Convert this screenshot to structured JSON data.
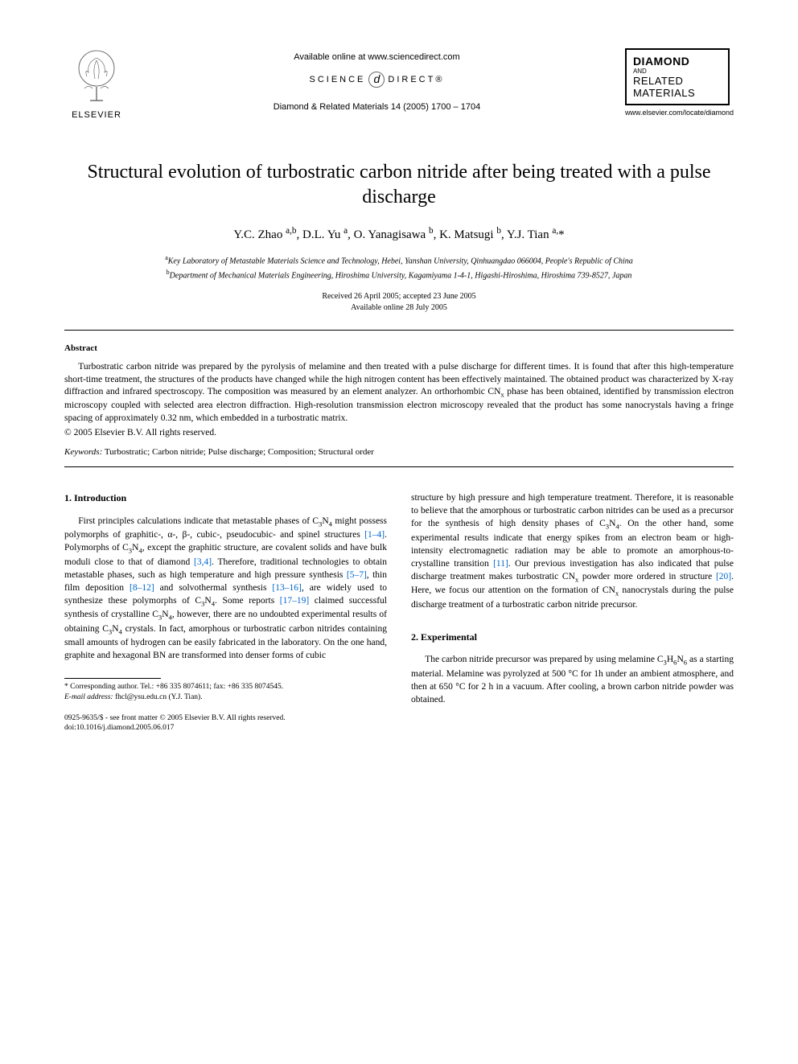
{
  "header": {
    "elsevier_label": "ELSEVIER",
    "available_online": "Available online at www.sciencedirect.com",
    "sciencedirect_left": "SCIENCE",
    "sciencedirect_right": "DIRECT®",
    "journal_ref": "Diamond & Related Materials 14 (2005) 1700 – 1704",
    "journal_box_line1": "DIAMOND",
    "journal_box_line2": "AND",
    "journal_box_line3": "RELATED",
    "journal_box_line4": "MATERIALS",
    "journal_url": "www.elsevier.com/locate/diamond"
  },
  "title": "Structural evolution of turbostratic carbon nitride after being treated with a pulse discharge",
  "authors_html": "Y.C. Zhao <sup>a,b</sup>, D.L. Yu <sup>a</sup>, O. Yanagisawa <sup>b</sup>, K. Matsugi <sup>b</sup>, Y.J. Tian <sup>a,</sup>*",
  "affiliations": {
    "a": "Key Laboratory of Metastable Materials Science and Technology, Hebei, Yanshan University, Qinhuangdao 066004, People's Republic of China",
    "b": "Department of Mechanical Materials Engineering, Hiroshima University, Kagamiyama 1-4-1, Higashi-Hiroshima, Hiroshima 739-8527, Japan"
  },
  "dates": {
    "received_accepted": "Received 26 April 2005; accepted 23 June 2005",
    "online": "Available online 28 July 2005"
  },
  "abstract": {
    "heading": "Abstract",
    "text_html": "Turbostratic carbon nitride was prepared by the pyrolysis of melamine and then treated with a pulse discharge for different times. It is found that after this high-temperature short-time treatment, the structures of the products have changed while the high nitrogen content has been effectively maintained. The obtained product was characterized by X-ray diffraction and infrared spectroscopy. The composition was measured by an element analyzer. An orthorhombic CN<sub>x</sub> phase has been obtained, identified by transmission electron microscopy coupled with selected area electron diffraction. High-resolution transmission electron microscopy revealed that the product has some nanocrystals having a fringe spacing of approximately 0.32 nm, which embedded in a turbostratic matrix.",
    "copyright": "© 2005 Elsevier B.V. All rights reserved."
  },
  "keywords": {
    "label": "Keywords:",
    "text": " Turbostratic; Carbon nitride; Pulse discharge; Composition; Structural order"
  },
  "sections": {
    "intro_heading": "1. Introduction",
    "intro_col1_html": "First principles calculations indicate that metastable phases of C<sub>3</sub>N<sub>4</sub> might possess polymorphs of graphitic-, α-, β-, cubic-, pseudocubic- and spinel structures <span class=\"ref-link\">[1–4]</span>. Polymorphs of C<sub>3</sub>N<sub>4</sub>, except the graphitic structure, are covalent solids and have bulk moduli close to that of diamond <span class=\"ref-link\">[3,4]</span>. Therefore, traditional technologies to obtain metastable phases, such as high temperature and high pressure synthesis <span class=\"ref-link\">[5–7]</span>, thin film deposition <span class=\"ref-link\">[8–12]</span> and solvothermal synthesis <span class=\"ref-link\">[13–16]</span>, are widely used to synthesize these polymorphs of C<sub>3</sub>N<sub>4</sub>. Some reports <span class=\"ref-link\">[17–19]</span> claimed successful synthesis of crystalline C<sub>3</sub>N<sub>4</sub>, however, there are no undoubted experimental results of obtaining C<sub>3</sub>N<sub>4</sub> crystals. In fact, amorphous or turbostratic carbon nitrides containing small amounts of hydrogen can be easily fabricated in the laboratory. On the one hand, graphite and hexagonal BN are transformed into denser forms of cubic",
    "intro_col2_html": "structure by high pressure and high temperature treatment. Therefore, it is reasonable to believe that the amorphous or turbostratic carbon nitrides can be used as a precursor for the synthesis of high density phases of C<sub>3</sub>N<sub>4</sub>. On the other hand, some experimental results indicate that energy spikes from an electron beam or high-intensity electromagnetic radiation may be able to promote an amorphous-to-crystalline transition <span class=\"ref-link\">[11]</span>. Our previous investigation has also indicated that pulse discharge treatment makes turbostratic CN<sub>x</sub> powder more ordered in structure <span class=\"ref-link\">[20]</span>. Here, we focus our attention on the formation of CN<sub>x</sub> nanocrystals during the pulse discharge treatment of a turbostratic carbon nitride precursor.",
    "exp_heading": "2. Experimental",
    "exp_text_html": "The carbon nitride precursor was prepared by using melamine C<sub>3</sub>H<sub>6</sub>N<sub>6</sub> as a starting material. Melamine was pyrolyzed at 500 °C for 1h under an ambient atmosphere, and then at 650 °C for 2 h in a vacuum. After cooling, a brown carbon nitride powder was obtained."
  },
  "footnote": {
    "corresponding": "* Corresponding author. Tel.: +86 335 8074611; fax: +86 335 8074545.",
    "email_label": "E-mail address:",
    "email_value": " fhcl@ysu.edu.cn (Y.J. Tian)."
  },
  "bottom": {
    "line1": "0925-9635/$ - see front matter © 2005 Elsevier B.V. All rights reserved.",
    "line2": "doi:10.1016/j.diamond.2005.06.017"
  },
  "colors": {
    "link": "#0066cc",
    "text": "#000000",
    "background": "#ffffff"
  }
}
